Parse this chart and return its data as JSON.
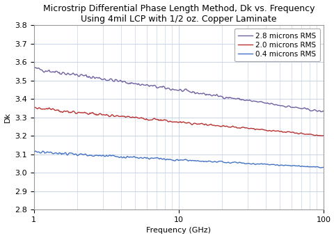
{
  "title_line1": "Microstrip Differential Phase Length Method, Dk vs. Frequency",
  "title_line2": "Using 4mil LCP with 1/2 oz. Copper Laminate",
  "xlabel": "Frequency (GHz)",
  "ylabel": "Dk",
  "xlim": [
    1,
    100
  ],
  "ylim": [
    2.8,
    3.8
  ],
  "yticks": [
    2.8,
    2.9,
    3.0,
    3.1,
    3.2,
    3.3,
    3.4,
    3.5,
    3.6,
    3.7,
    3.8
  ],
  "series": [
    {
      "label": "2.8 microns RMS",
      "color": "#7060A0",
      "start": 3.565,
      "end": 3.33,
      "noise": 0.006
    },
    {
      "label": "2.0 microns RMS",
      "color": "#B83030",
      "start": 3.35,
      "end": 3.2,
      "noise": 0.004
    },
    {
      "label": "0.4 microns RMS",
      "color": "#4472C4",
      "start": 3.112,
      "end": 3.028,
      "noise": 0.004
    }
  ],
  "background_color": "#FFFFFF",
  "plot_bg_color": "#FFFFFF",
  "grid_color": "#C8D4E8",
  "title_fontsize": 9,
  "axis_label_fontsize": 8,
  "tick_fontsize": 8,
  "legend_fontsize": 7.5
}
